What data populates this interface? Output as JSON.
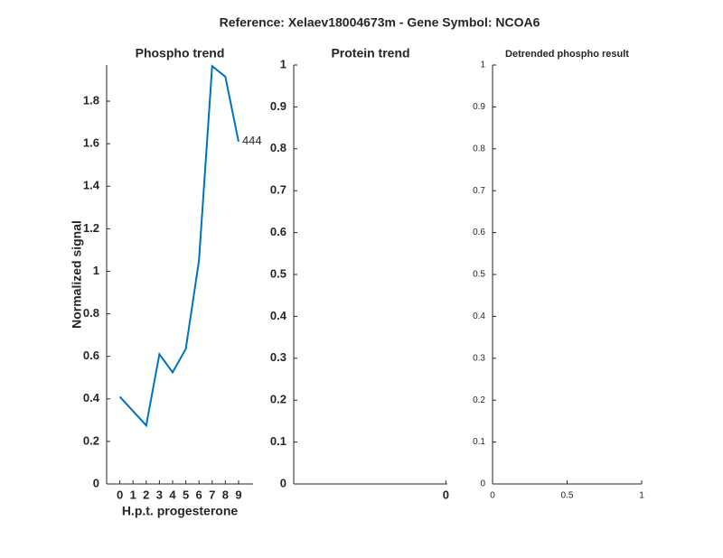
{
  "title": "Reference:  Xelaev18004673m - Gene Symbol:  NCOA6",
  "chart_data": [
    {
      "type": "line",
      "title": "Phospho trend",
      "xlabel": "H.p.t. progesterone",
      "ylabel": "Normalized signal",
      "x": [
        0,
        2,
        3,
        4,
        5,
        6,
        7,
        8,
        9
      ],
      "values": [
        0.41,
        0.275,
        0.61,
        0.525,
        0.635,
        1.05,
        1.965,
        1.915,
        1.61
      ],
      "color": "#0072bd",
      "annotation": "444",
      "xlim": [
        -1,
        10.1
      ],
      "ylim": [
        0,
        1.97
      ],
      "xticks": [
        0,
        1,
        2,
        3,
        4,
        5,
        6,
        7,
        8,
        9
      ],
      "yticks": [
        0,
        0.2,
        0.4,
        0.6,
        0.8,
        1,
        1.2,
        1.4,
        1.6,
        1.8
      ]
    },
    {
      "type": "line",
      "title": "Protein trend",
      "xlim": [
        -1,
        0.01
      ],
      "ylim": [
        0,
        1
      ],
      "xticks": [
        0
      ],
      "yticks": [
        0,
        0.1,
        0.2,
        0.3,
        0.4,
        0.5,
        0.6,
        0.7,
        0.8,
        0.9,
        1
      ]
    },
    {
      "type": "line",
      "title": "Detrended phospho result",
      "xlim": [
        0,
        1
      ],
      "ylim": [
        0,
        1
      ],
      "xticks": [
        0,
        0.5,
        1
      ],
      "yticks": [
        0,
        0.1,
        0.2,
        0.3,
        0.4,
        0.5,
        0.6,
        0.7,
        0.8,
        0.9,
        1
      ]
    }
  ]
}
